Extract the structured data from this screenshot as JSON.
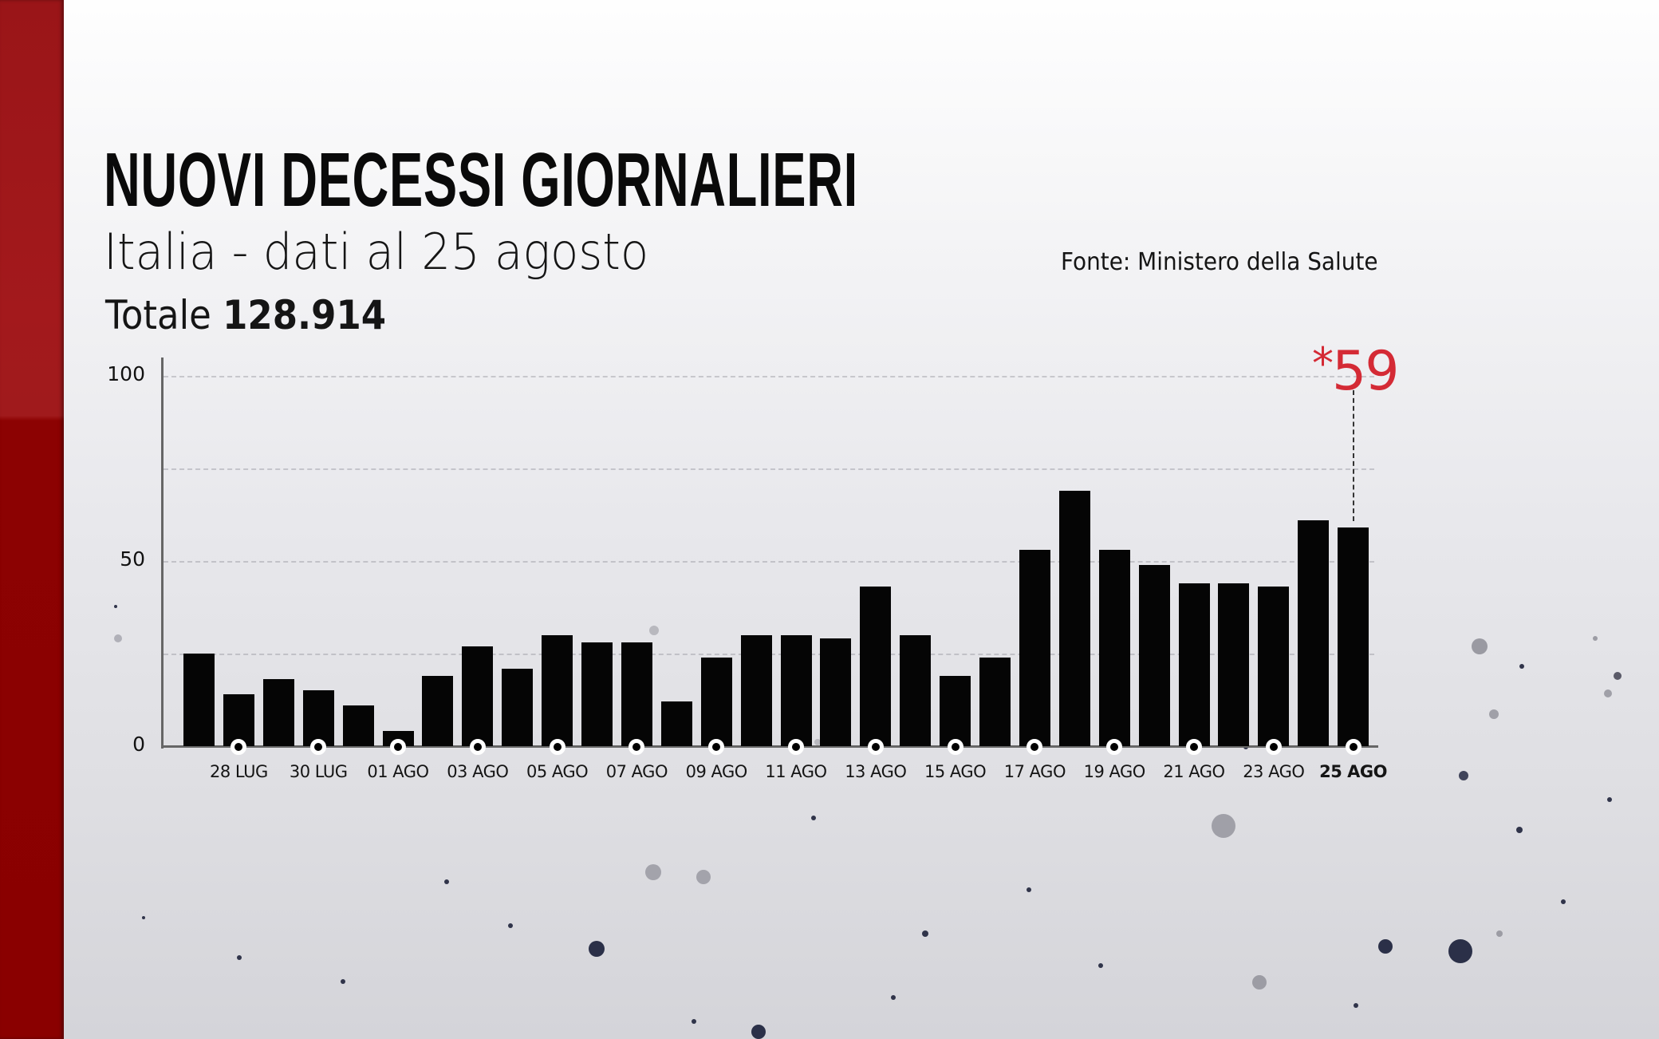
{
  "header": {
    "title": "NUOVI DECESSI GIORNALIERI",
    "subtitle": "Italia - dati al 25 agosto",
    "total_label": "Totale",
    "total_value": "128.914",
    "source": "Fonte: Ministero della Salute"
  },
  "annotation": {
    "star": "*",
    "value": "59",
    "color": "#d42a35"
  },
  "colors": {
    "bar": "#050505",
    "accent_band": "#8a0000",
    "annotation": "#d42a35"
  },
  "chart_data": {
    "type": "bar",
    "title": "NUOVI DECESSI GIORNALIERI",
    "subtitle": "Italia - dati al 25 agosto",
    "xlabel": "",
    "ylabel": "",
    "ylim": [
      0,
      100
    ],
    "yticks": [
      0,
      50,
      100
    ],
    "gridlines": [
      25,
      50,
      75,
      100
    ],
    "grid": true,
    "legend": "none",
    "categories": [
      "27 LUG",
      "28 LUG",
      "29 LUG",
      "30 LUG",
      "31 LUG",
      "01 AGO",
      "02 AGO",
      "03 AGO",
      "04 AGO",
      "05 AGO",
      "06 AGO",
      "07 AGO",
      "08 AGO",
      "09 AGO",
      "10 AGO",
      "11 AGO",
      "12 AGO",
      "13 AGO",
      "14 AGO",
      "15 AGO",
      "16 AGO",
      "17 AGO",
      "18 AGO",
      "19 AGO",
      "20 AGO",
      "21 AGO",
      "22 AGO",
      "23 AGO",
      "24 AGO",
      "25 AGO"
    ],
    "values": [
      25,
      14,
      18,
      15,
      11,
      4,
      19,
      27,
      21,
      30,
      28,
      28,
      12,
      24,
      30,
      30,
      29,
      43,
      30,
      19,
      24,
      53,
      69,
      53,
      49,
      44,
      44,
      43,
      61,
      59
    ],
    "tick_labels": [
      "28 LUG",
      "30 LUG",
      "01 AGO",
      "03 AGO",
      "05 AGO",
      "07 AGO",
      "09 AGO",
      "11 AGO",
      "13 AGO",
      "15 AGO",
      "17 AGO",
      "19 AGO",
      "21 AGO",
      "23 AGO",
      "25 AGO"
    ],
    "annotations": [
      {
        "category": "25 AGO",
        "text": "*59"
      }
    ],
    "total": "128.914",
    "source": "Fonte: Ministero della Salute"
  }
}
